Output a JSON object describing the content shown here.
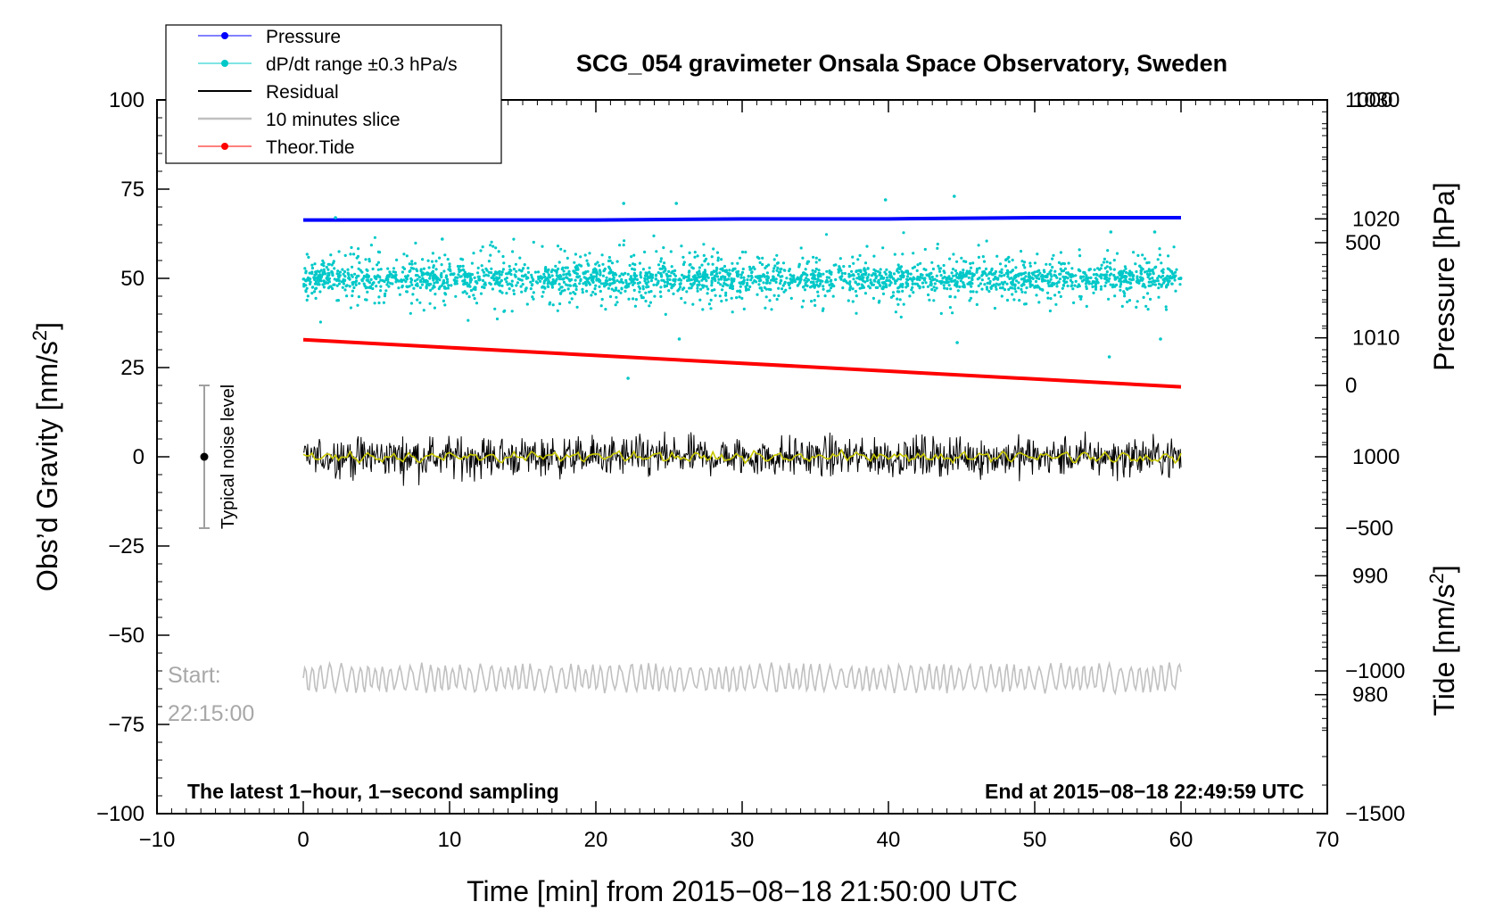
{
  "chart_data": {
    "type": "line",
    "title": "SCG_054 gravimeter Onsala Space Observatory, Sweden",
    "xlabel": "Time [min] from 2015−08−18 21:50:00 UTC",
    "ylabel_left": "Obs’d Gravity [nm/s",
    "ylabel_left_suffix": "]",
    "ylabel_right_pressure": "Pressure [hPa]",
    "ylabel_right_tide": "Tide [nm/s",
    "ylabel_right_tide_suffix": "]",
    "superscript": "2",
    "xlim": [
      -10,
      70
    ],
    "ylim": [
      -100,
      100
    ],
    "pressure_lim": [
      970,
      1030
    ],
    "tide_lim": [
      -1500,
      1000
    ],
    "x_ticks": [
      -10,
      0,
      10,
      20,
      30,
      40,
      50,
      60,
      70
    ],
    "x_tick_labels": [
      "−10",
      "0",
      "10",
      "20",
      "30",
      "40",
      "50",
      "60",
      "70"
    ],
    "y_ticks": [
      -100,
      -75,
      -50,
      -25,
      0,
      25,
      50,
      75,
      100
    ],
    "y_tick_labels": [
      "−100",
      "−75",
      "−50",
      "−25",
      "0",
      "25",
      "50",
      "75",
      "100"
    ],
    "pressure_ticks": [
      980,
      990,
      1000,
      1010,
      1020,
      1030
    ],
    "pressure_tick_labels": [
      "980",
      "990",
      "1000",
      "1010",
      "1020",
      "1030"
    ],
    "tide_ticks": [
      -1500,
      -1000,
      -500,
      0,
      500,
      1000
    ],
    "tide_tick_labels": [
      "−1500",
      "−1000",
      "−500",
      "0",
      "500",
      "1000"
    ],
    "series": [
      {
        "name": "Pressure",
        "axis": "pressure",
        "color": "#0000ff",
        "x": [
          0,
          10,
          20,
          30,
          40,
          50,
          60
        ],
        "values": [
          1019.9,
          1019.9,
          1019.9,
          1020.0,
          1020.0,
          1020.1,
          1020.1
        ]
      },
      {
        "name": "dP/dt range ±0.3 hPa/s",
        "axis": "gravity",
        "color": "#00c8c8",
        "center": 50,
        "spread": 18,
        "outliers": [
          [
            2.2,
            67
          ],
          [
            9.5,
            61
          ],
          [
            21.9,
            71
          ],
          [
            22.2,
            22
          ],
          [
            25.5,
            71
          ],
          [
            25.7,
            33
          ],
          [
            39.8,
            72
          ],
          [
            44.5,
            73
          ],
          [
            44.7,
            32
          ],
          [
            55.2,
            63
          ],
          [
            55.1,
            28
          ],
          [
            58.2,
            63
          ],
          [
            58.6,
            33
          ]
        ]
      },
      {
        "name": "Residual",
        "axis": "gravity",
        "color": "#000000",
        "center": 0,
        "amplitude": 5
      },
      {
        "name": "10 minutes slice",
        "axis": "gravity",
        "color": "#c0c0c0",
        "center": -62,
        "amplitude": 4
      },
      {
        "name": "Theor.Tide",
        "axis": "tide",
        "color": "#ff0000",
        "x": [
          0,
          60
        ],
        "values": [
          160,
          -5
        ]
      }
    ],
    "smooth_series_color": "#c8c800",
    "legend": [
      "Pressure",
      "dP/dt range ±0.3 hPa/s",
      "Residual",
      "10 minutes slice",
      "Theor.Tide"
    ],
    "legend_placement": "top-left",
    "noise_bar": {
      "x": -7,
      "center": 0,
      "low": -20,
      "high": 20,
      "label": "Typical noise level"
    },
    "annotations": {
      "bottom_left": "The latest 1−hour, 1−second sampling",
      "bottom_right": "End at 2015−08−18 22:49:59 UTC",
      "start_label": "Start:",
      "start_time": "22:15:00"
    }
  }
}
